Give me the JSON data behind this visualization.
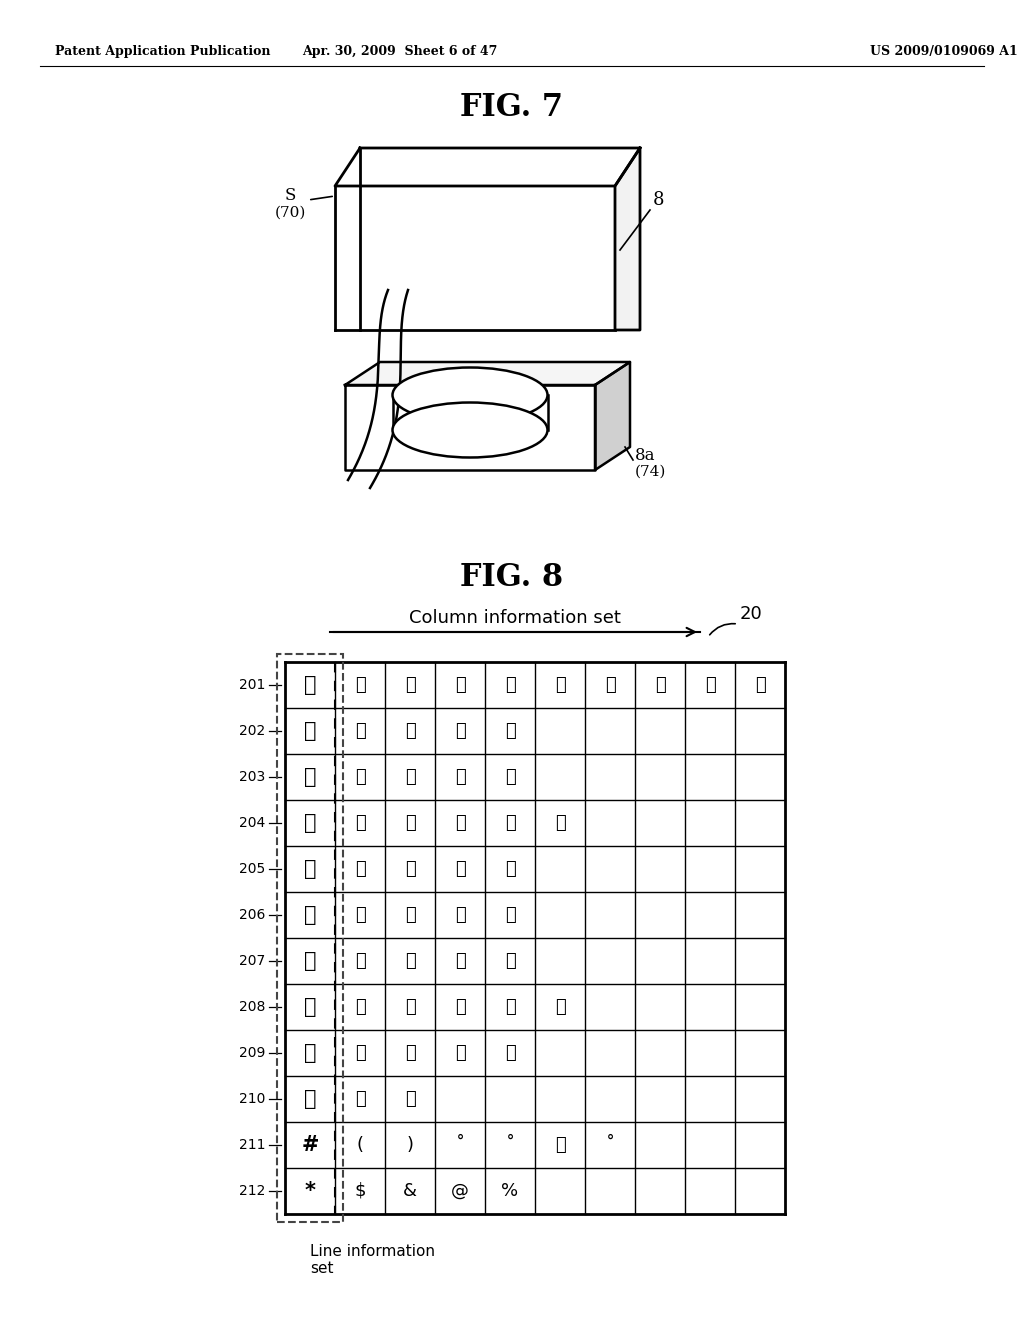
{
  "header_left": "Patent Application Publication",
  "header_mid": "Apr. 30, 2009  Sheet 6 of 47",
  "header_right": "US 2009/0109069 A1",
  "fig7_title": "FIG. 7",
  "fig8_title": "FIG. 8",
  "col_info_label": "Column information set",
  "line_info_label": "Line information\nset",
  "ref_20": "20",
  "row_labels": [
    "201",
    "202",
    "203",
    "204",
    "205",
    "206",
    "207",
    "208",
    "209",
    "210",
    "211",
    "212"
  ],
  "grid_data": [
    [
      "あ",
      "い",
      "う",
      "え",
      "お",
      "あ",
      "い",
      "う",
      "え",
      "お"
    ],
    [
      "か",
      "き",
      "く",
      "け",
      "こ",
      "",
      "",
      "",
      "",
      ""
    ],
    [
      "さ",
      "し",
      "す",
      "せ",
      "そ",
      "",
      "",
      "",
      "",
      ""
    ],
    [
      "た",
      "ち",
      "つ",
      "て",
      "と",
      "っ",
      "",
      "",
      "",
      ""
    ],
    [
      "な",
      "に",
      "ぬ",
      "ね",
      "の",
      "",
      "",
      "",
      "",
      ""
    ],
    [
      "は",
      "ひ",
      "ふ",
      "へ",
      "ほ",
      "",
      "",
      "",
      "",
      ""
    ],
    [
      "ま",
      "み",
      "む",
      "め",
      "も",
      "",
      "",
      "",
      "",
      ""
    ],
    [
      "や",
      "ゆ",
      "よ",
      "や",
      "ゆ",
      "よ",
      "",
      "",
      "",
      ""
    ],
    [
      "ら",
      "り",
      "る",
      "れ",
      "ろ",
      "",
      "",
      "",
      "",
      ""
    ],
    [
      "わ",
      "を",
      "ん",
      "",
      "",
      "",
      "",
      "",
      "",
      ""
    ],
    [
      "#",
      "(",
      ")",
      "˚",
      "˚",
      "、",
      "˚",
      "",
      "",
      ""
    ],
    [
      "*",
      "$",
      "&",
      "@",
      "%",
      "",
      "",
      "",
      "",
      ""
    ]
  ],
  "bg_color": "#ffffff",
  "line_color": "#000000",
  "text_color": "#000000"
}
